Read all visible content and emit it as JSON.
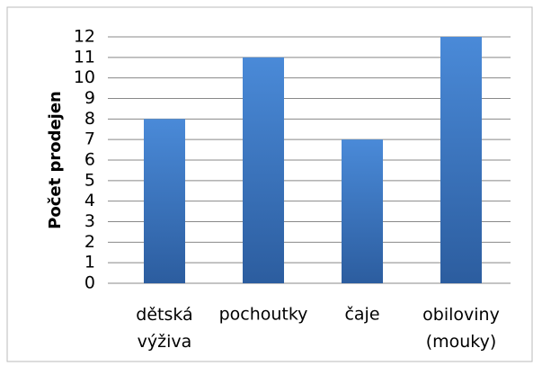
{
  "chart_data": {
    "type": "bar",
    "y_label": "Počet prodejen",
    "categories": [
      "dětská výživa",
      "pochoutky",
      "čaje",
      "obiloviny (mouky)"
    ],
    "values": [
      8,
      11,
      7,
      12
    ],
    "color": "#3f7cc9",
    "ylim": [
      0,
      12
    ],
    "yticks": [
      0,
      1,
      2,
      3,
      4,
      5,
      6,
      7,
      8,
      9,
      10,
      11,
      12
    ],
    "grid": true
  }
}
